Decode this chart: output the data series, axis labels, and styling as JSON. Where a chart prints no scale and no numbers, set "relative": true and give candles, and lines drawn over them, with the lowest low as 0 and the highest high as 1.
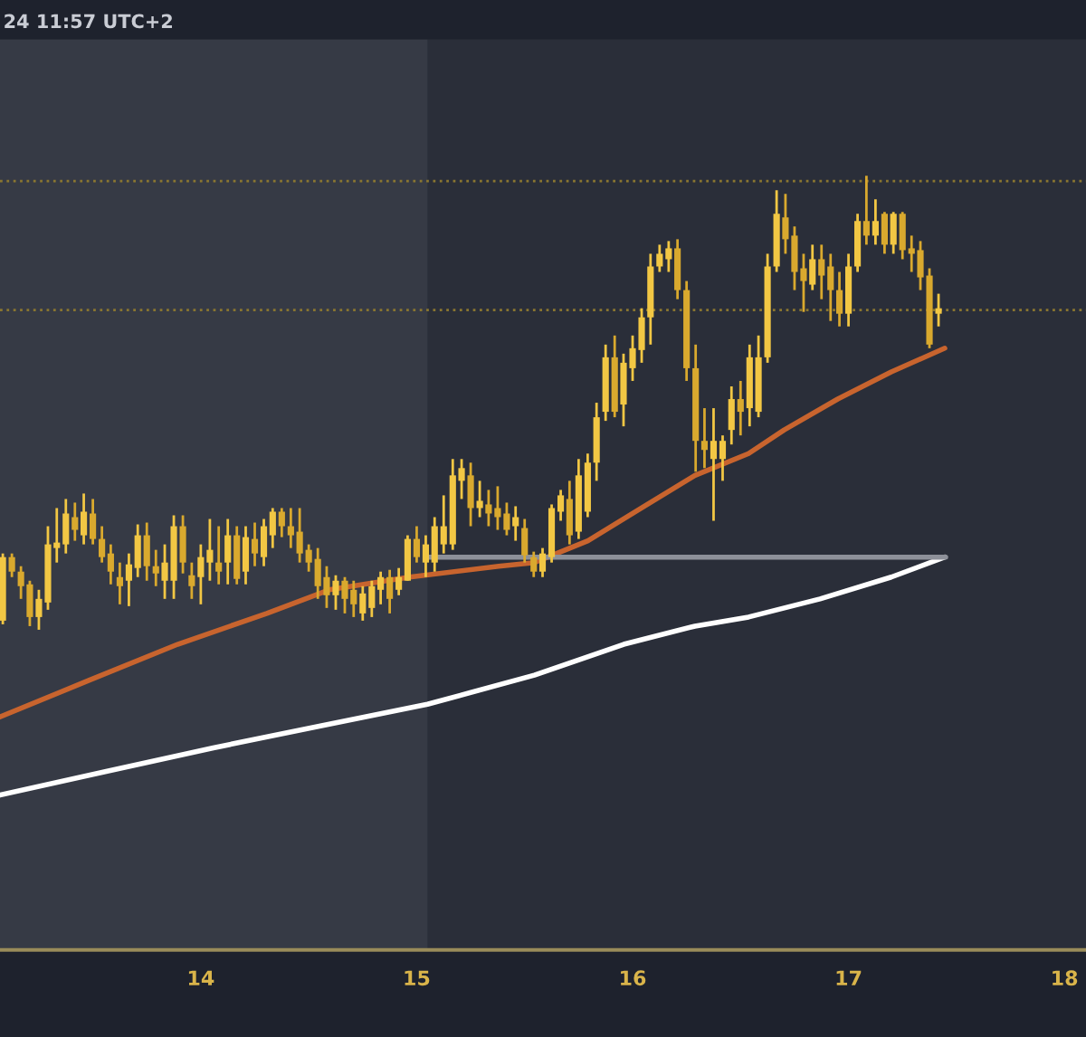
{
  "chart_data": {
    "type": "candlestick",
    "relative": true,
    "colors": [
      "#f2c744",
      "#d9a92e",
      "#d9a92e",
      "#d9a92e",
      "#f2c744",
      "#f2c744",
      "#f2c744",
      "#f2c744",
      "#d9a92e",
      "#f2c744",
      "#d9a92e",
      "#d9a92e",
      "#d9a92e",
      "#d9a92e",
      "#f2c744",
      "#f2c744",
      "#d9a92e",
      "#d9a92e",
      "#f2c744",
      "#f2c744",
      "#d9a92e",
      "#d9a92e",
      "#f2c744",
      "#f2c744",
      "#d9a92e",
      "#f2c744",
      "#d9a92e",
      "#f2c744",
      "#d9a92e",
      "#f2c744",
      "#f2c744",
      "#d9a92e",
      "#d9a92e",
      "#d9a92e",
      "#d9a92e",
      "#d9a92e",
      "#d9a92e",
      "#f2c744",
      "#d9a92e",
      "#d9a92e",
      "#f2c744",
      "#f2c744",
      "#f2c744",
      "#d9a92e",
      "#f2c744",
      "#f2c744",
      "#d9a92e",
      "#f2c744",
      "#f2c744",
      "#f2c744",
      "#f2c744",
      "#f2c744",
      "#d9a92e",
      "#f2c744",
      "#d9a92e",
      "#d9a92e",
      "#d9a92e",
      "#f2c744",
      "#d9a92e",
      "#d9a92e",
      "#f2c744",
      "#f2c744",
      "#f2c744",
      "#d9a92e",
      "#f2c744",
      "#f2c744",
      "#f2c744",
      "#f2c744",
      "#d9a92e",
      "#f2c744",
      "#f2c744",
      "#f2c744",
      "#f2c744",
      "#f2c744",
      "#f2c744",
      "#d9a92e",
      "#d9a92e",
      "#d9a92e",
      "#d9a92e",
      "#f2c744",
      "#f2c744",
      "#f2c744",
      "#d9a92e",
      "#f2c744",
      "#f2c744",
      "#f2c744",
      "#f2c744",
      "#d9a92e",
      "#d9a92e",
      "#d9a92e",
      "#f2c744",
      "#d9a92e",
      "#d9a92e",
      "#d9a92e",
      "#f2c744",
      "#f2c744",
      "#d9a92e",
      "#f2c744",
      "#d9a92e",
      "#f2c744",
      "#d9a92e",
      "#d9a92e",
      "#d9a92e",
      "#d9a92e",
      "#f2c744"
    ],
    "annotations": [
      "24 11:57 UTC+2"
    ],
    "x": [
      13.083,
      13.125,
      13.167,
      13.208,
      13.25,
      13.292,
      13.333,
      13.375,
      13.417,
      13.458,
      13.5,
      13.542,
      13.583,
      13.625,
      13.667,
      13.708,
      13.75,
      13.792,
      13.833,
      13.875,
      13.917,
      13.958,
      14.0,
      14.042,
      14.083,
      14.125,
      14.167,
      14.208,
      14.25,
      14.292,
      14.333,
      14.375,
      14.417,
      14.458,
      14.5,
      14.542,
      14.583,
      14.625,
      14.667,
      14.708,
      14.75,
      14.792,
      14.833,
      14.875,
      14.917,
      14.958,
      15.0,
      15.042,
      15.083,
      15.125,
      15.167,
      15.208,
      15.25,
      15.292,
      15.333,
      15.375,
      15.417,
      15.458,
      15.5,
      15.542,
      15.583,
      15.625,
      15.667,
      15.708,
      15.75,
      15.792,
      15.833,
      15.875,
      15.917,
      15.958,
      16.0,
      16.042,
      16.083,
      16.125,
      16.167,
      16.208,
      16.25,
      16.292,
      16.333,
      16.375,
      16.417,
      16.458,
      16.5,
      16.542,
      16.583,
      16.625,
      16.667,
      16.708,
      16.75,
      16.792,
      16.833,
      16.875,
      16.917,
      16.958,
      17.0,
      17.042,
      17.083,
      17.125,
      17.167,
      17.208,
      17.25,
      17.292,
      17.333,
      17.375,
      17.417
    ],
    "ohlc": [
      [
        0.02,
        0.168,
        0.012,
        0.16
      ],
      [
        0.16,
        0.168,
        0.116,
        0.128
      ],
      [
        0.128,
        0.14,
        0.068,
        0.096
      ],
      [
        0.1,
        0.108,
        0.008,
        0.028
      ],
      [
        0.028,
        0.088,
        0,
        0.068
      ],
      [
        0.06,
        0.228,
        0.044,
        0.188
      ],
      [
        0.18,
        0.268,
        0.148,
        0.192
      ],
      [
        0.188,
        0.288,
        0.168,
        0.256
      ],
      [
        0.248,
        0.28,
        0.196,
        0.22
      ],
      [
        0.208,
        0.3,
        0.188,
        0.26
      ],
      [
        0.256,
        0.288,
        0.188,
        0.2
      ],
      [
        0.2,
        0.228,
        0.148,
        0.16
      ],
      [
        0.168,
        0.188,
        0.1,
        0.128
      ],
      [
        0.116,
        0.148,
        0.056,
        0.096
      ],
      [
        0.108,
        0.168,
        0.052,
        0.144
      ],
      [
        0.136,
        0.232,
        0.116,
        0.208
      ],
      [
        0.208,
        0.236,
        0.108,
        0.14
      ],
      [
        0.14,
        0.176,
        0.096,
        0.124
      ],
      [
        0.108,
        0.188,
        0.068,
        0.148
      ],
      [
        0.108,
        0.252,
        0.068,
        0.228
      ],
      [
        0.228,
        0.252,
        0.124,
        0.148
      ],
      [
        0.12,
        0.148,
        0.068,
        0.096
      ],
      [
        0.116,
        0.188,
        0.056,
        0.16
      ],
      [
        0.148,
        0.244,
        0.108,
        0.176
      ],
      [
        0.148,
        0.228,
        0.1,
        0.128
      ],
      [
        0.148,
        0.244,
        0.1,
        0.208
      ],
      [
        0.208,
        0.228,
        0.1,
        0.112
      ],
      [
        0.128,
        0.228,
        0.1,
        0.204
      ],
      [
        0.2,
        0.236,
        0.14,
        0.168
      ],
      [
        0.16,
        0.244,
        0.14,
        0.228
      ],
      [
        0.208,
        0.268,
        0.18,
        0.26
      ],
      [
        0.26,
        0.268,
        0.204,
        0.228
      ],
      [
        0.228,
        0.268,
        0.18,
        0.208
      ],
      [
        0.216,
        0.268,
        0.148,
        0.168
      ],
      [
        0.176,
        0.188,
        0.128,
        0.148
      ],
      [
        0.156,
        0.18,
        0.068,
        0.096
      ],
      [
        0.116,
        0.14,
        0.048,
        0.076
      ],
      [
        0.076,
        0.12,
        0.044,
        0.108
      ],
      [
        0.108,
        0.116,
        0.036,
        0.068
      ],
      [
        0.088,
        0.108,
        0.028,
        0.056
      ],
      [
        0.036,
        0.096,
        0.02,
        0.08
      ],
      [
        0.048,
        0.108,
        0.028,
        0.096
      ],
      [
        0.088,
        0.128,
        0.056,
        0.116
      ],
      [
        0.116,
        0.132,
        0.036,
        0.068
      ],
      [
        0.088,
        0.136,
        0.076,
        0.116
      ],
      [
        0.108,
        0.208,
        0.108,
        0.2
      ],
      [
        0.2,
        0.228,
        0.148,
        0.16
      ],
      [
        0.148,
        0.208,
        0.116,
        0.188
      ],
      [
        0.148,
        0.248,
        0.128,
        0.228
      ],
      [
        0.188,
        0.296,
        0.168,
        0.228
      ],
      [
        0.188,
        0.376,
        0.176,
        0.34
      ],
      [
        0.328,
        0.376,
        0.288,
        0.356
      ],
      [
        0.34,
        0.368,
        0.228,
        0.268
      ],
      [
        0.268,
        0.328,
        0.248,
        0.284
      ],
      [
        0.276,
        0.308,
        0.228,
        0.256
      ],
      [
        0.268,
        0.316,
        0.22,
        0.248
      ],
      [
        0.256,
        0.28,
        0.208,
        0.22
      ],
      [
        0.228,
        0.272,
        0.196,
        0.248
      ],
      [
        0.224,
        0.244,
        0.148,
        0.164
      ],
      [
        0.16,
        0.172,
        0.116,
        0.128
      ],
      [
        0.128,
        0.18,
        0.116,
        0.168
      ],
      [
        0.16,
        0.276,
        0.148,
        0.268
      ],
      [
        0.26,
        0.308,
        0.24,
        0.296
      ],
      [
        0.288,
        0.328,
        0.188,
        0.208
      ],
      [
        0.216,
        0.376,
        0.2,
        0.34
      ],
      [
        0.26,
        0.388,
        0.248,
        0.368
      ],
      [
        0.368,
        0.5,
        0.328,
        0.468
      ],
      [
        0.48,
        0.628,
        0.46,
        0.6
      ],
      [
        0.6,
        0.648,
        0.468,
        0.48
      ],
      [
        0.496,
        0.608,
        0.448,
        0.588
      ],
      [
        0.576,
        0.648,
        0.548,
        0.62
      ],
      [
        0.616,
        0.708,
        0.588,
        0.688
      ],
      [
        0.688,
        0.828,
        0.628,
        0.8
      ],
      [
        0.8,
        0.848,
        0.788,
        0.828
      ],
      [
        0.816,
        0.856,
        0.788,
        0.84
      ],
      [
        0.84,
        0.86,
        0.728,
        0.748
      ],
      [
        0.748,
        0.768,
        0.548,
        0.576
      ],
      [
        0.576,
        0.628,
        0.348,
        0.416
      ],
      [
        0.416,
        0.488,
        0.356,
        0.396
      ],
      [
        0.376,
        0.488,
        0.24,
        0.416
      ],
      [
        0.376,
        0.428,
        0.328,
        0.416
      ],
      [
        0.44,
        0.536,
        0.408,
        0.508
      ],
      [
        0.508,
        0.548,
        0.428,
        0.48
      ],
      [
        0.488,
        0.628,
        0.448,
        0.6
      ],
      [
        0.48,
        0.648,
        0.468,
        0.6
      ],
      [
        0.6,
        0.828,
        0.588,
        0.8
      ],
      [
        0.8,
        0.968,
        0.788,
        0.916
      ],
      [
        0.908,
        0.96,
        0.828,
        0.86
      ],
      [
        0.868,
        0.888,
        0.748,
        0.788
      ],
      [
        0.796,
        0.828,
        0.7,
        0.768
      ],
      [
        0.76,
        0.848,
        0.748,
        0.816
      ],
      [
        0.816,
        0.848,
        0.728,
        0.78
      ],
      [
        0.8,
        0.828,
        0.68,
        0.748
      ],
      [
        0.748,
        0.788,
        0.668,
        0.696
      ],
      [
        0.696,
        0.828,
        0.668,
        0.8
      ],
      [
        0.8,
        0.916,
        0.788,
        0.9
      ],
      [
        0.9,
        1.0,
        0.848,
        0.868
      ],
      [
        0.868,
        0.948,
        0.848,
        0.9
      ],
      [
        0.916,
        0.92,
        0.828,
        0.848
      ],
      [
        0.848,
        0.92,
        0.828,
        0.916
      ],
      [
        0.916,
        0.92,
        0.816,
        0.836
      ],
      [
        0.84,
        0.868,
        0.788,
        0.828
      ],
      [
        0.836,
        0.856,
        0.748,
        0.776
      ],
      [
        0.78,
        0.796,
        0.62,
        0.628
      ],
      [
        0.696,
        0.74,
        0.668,
        0.708
      ]
    ],
    "series": [
      {
        "type": "line",
        "color": "#c8642e",
        "x": [
          13.07,
          13.479,
          13.893,
          14.306,
          14.595,
          14.967,
          15.38,
          15.545,
          15.793,
          16.041,
          16.289,
          16.537,
          16.702,
          16.95,
          17.198,
          17.446
        ],
        "values": [
          -0.192,
          -0.112,
          -0.032,
          0.036,
          0.088,
          0.116,
          0.14,
          0.148,
          0.196,
          0.268,
          0.34,
          0.388,
          0.44,
          0.508,
          0.568,
          0.62
        ]
      },
      {
        "type": "line",
        "color": "#ffffff",
        "x": [
          13.07,
          13.562,
          14.058,
          14.554,
          15.05,
          15.545,
          15.959,
          16.289,
          16.537,
          16.868,
          17.198,
          17.446
        ],
        "values": [
          -0.364,
          -0.312,
          -0.26,
          -0.212,
          -0.164,
          -0.1,
          -0.032,
          0.008,
          0.028,
          0.068,
          0.116,
          0.16
        ]
      },
      {
        "type": "line",
        "color": "#8d9099",
        "x": [
          15.05,
          17.45
        ],
        "values": [
          0.16,
          0.16
        ]
      }
    ],
    "ref_lines": [
      {
        "axis": "y",
        "value": 0.988,
        "color": "#8a7630",
        "line_style": "dotted"
      },
      {
        "axis": "y",
        "value": 0.704,
        "color": "#8a7630",
        "line_style": "dotted"
      }
    ],
    "bands": [
      {
        "axis": "x",
        "from": 13.07,
        "to": 15.05,
        "color": "#363a45"
      }
    ],
    "xlim": [
      13.07,
      18.1
    ],
    "xticks": [
      14,
      15,
      16,
      17,
      18
    ],
    "tick_labels": "x",
    "grid": false,
    "legend": false
  }
}
